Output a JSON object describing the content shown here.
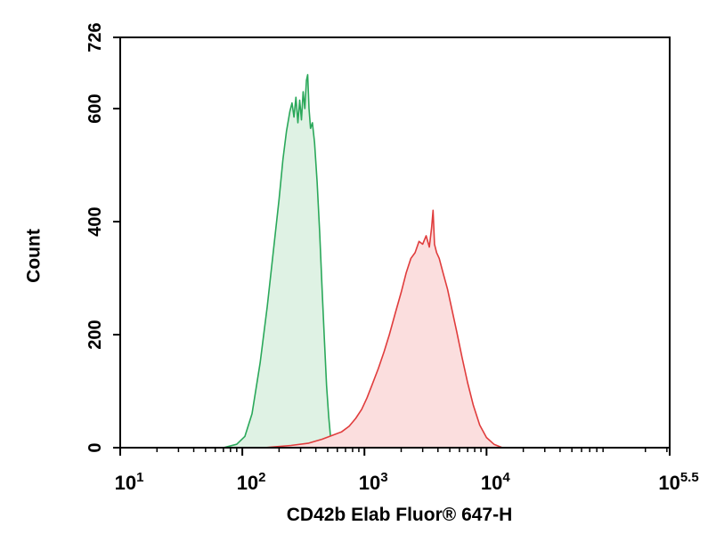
{
  "chart_data": {
    "type": "area",
    "title": "",
    "xlabel": "CD42b Elab Fluor® 647-H",
    "ylabel": "Count",
    "x_scale": "log10",
    "xlim": [
      10,
      316228
    ],
    "ylim": [
      0,
      726
    ],
    "grid": false,
    "y_ticks": [
      {
        "value": 0,
        "label": "0"
      },
      {
        "value": 200,
        "label": "200"
      },
      {
        "value": 400,
        "label": "400"
      },
      {
        "value": 600,
        "label": "600"
      },
      {
        "value": 726,
        "label": "726"
      }
    ],
    "x_ticks": [
      {
        "value": 10,
        "base": "10",
        "exp": "1"
      },
      {
        "value": 100,
        "base": "10",
        "exp": "2"
      },
      {
        "value": 1000,
        "base": "10",
        "exp": "3"
      },
      {
        "value": 10000,
        "base": "10",
        "exp": "4"
      },
      {
        "value": 316228,
        "base": "10",
        "exp": "5.5"
      }
    ],
    "series": [
      {
        "color": "#2aa85a",
        "fill": "#dff2e4",
        "points": [
          [
            70,
            0
          ],
          [
            90,
            6
          ],
          [
            105,
            20
          ],
          [
            120,
            60
          ],
          [
            140,
            150
          ],
          [
            160,
            250
          ],
          [
            180,
            350
          ],
          [
            200,
            440
          ],
          [
            215,
            510
          ],
          [
            230,
            560
          ],
          [
            245,
            595
          ],
          [
            255,
            610
          ],
          [
            265,
            585
          ],
          [
            275,
            620
          ],
          [
            285,
            575
          ],
          [
            295,
            615
          ],
          [
            305,
            580
          ],
          [
            315,
            630
          ],
          [
            325,
            600
          ],
          [
            335,
            650
          ],
          [
            343,
            660
          ],
          [
            352,
            600
          ],
          [
            362,
            565
          ],
          [
            375,
            575
          ],
          [
            390,
            540
          ],
          [
            410,
            470
          ],
          [
            430,
            380
          ],
          [
            450,
            280
          ],
          [
            470,
            190
          ],
          [
            490,
            110
          ],
          [
            510,
            55
          ],
          [
            530,
            15
          ],
          [
            560,
            0
          ]
        ]
      },
      {
        "color": "#e03c3c",
        "fill": "#fbdede",
        "points": [
          [
            150,
            0
          ],
          [
            250,
            4
          ],
          [
            350,
            8
          ],
          [
            450,
            15
          ],
          [
            550,
            22
          ],
          [
            650,
            28
          ],
          [
            750,
            38
          ],
          [
            850,
            52
          ],
          [
            950,
            68
          ],
          [
            1050,
            88
          ],
          [
            1150,
            110
          ],
          [
            1300,
            140
          ],
          [
            1450,
            170
          ],
          [
            1600,
            200
          ],
          [
            1800,
            240
          ],
          [
            2000,
            275
          ],
          [
            2200,
            310
          ],
          [
            2400,
            335
          ],
          [
            2600,
            345
          ],
          [
            2800,
            365
          ],
          [
            3000,
            360
          ],
          [
            3200,
            375
          ],
          [
            3400,
            355
          ],
          [
            3550,
            390
          ],
          [
            3650,
            420
          ],
          [
            3750,
            360
          ],
          [
            3900,
            345
          ],
          [
            4100,
            335
          ],
          [
            4400,
            310
          ],
          [
            4800,
            280
          ],
          [
            5200,
            245
          ],
          [
            5700,
            205
          ],
          [
            6300,
            160
          ],
          [
            7000,
            115
          ],
          [
            7800,
            75
          ],
          [
            8800,
            40
          ],
          [
            10000,
            18
          ],
          [
            11500,
            6
          ],
          [
            13500,
            0
          ]
        ]
      }
    ]
  }
}
